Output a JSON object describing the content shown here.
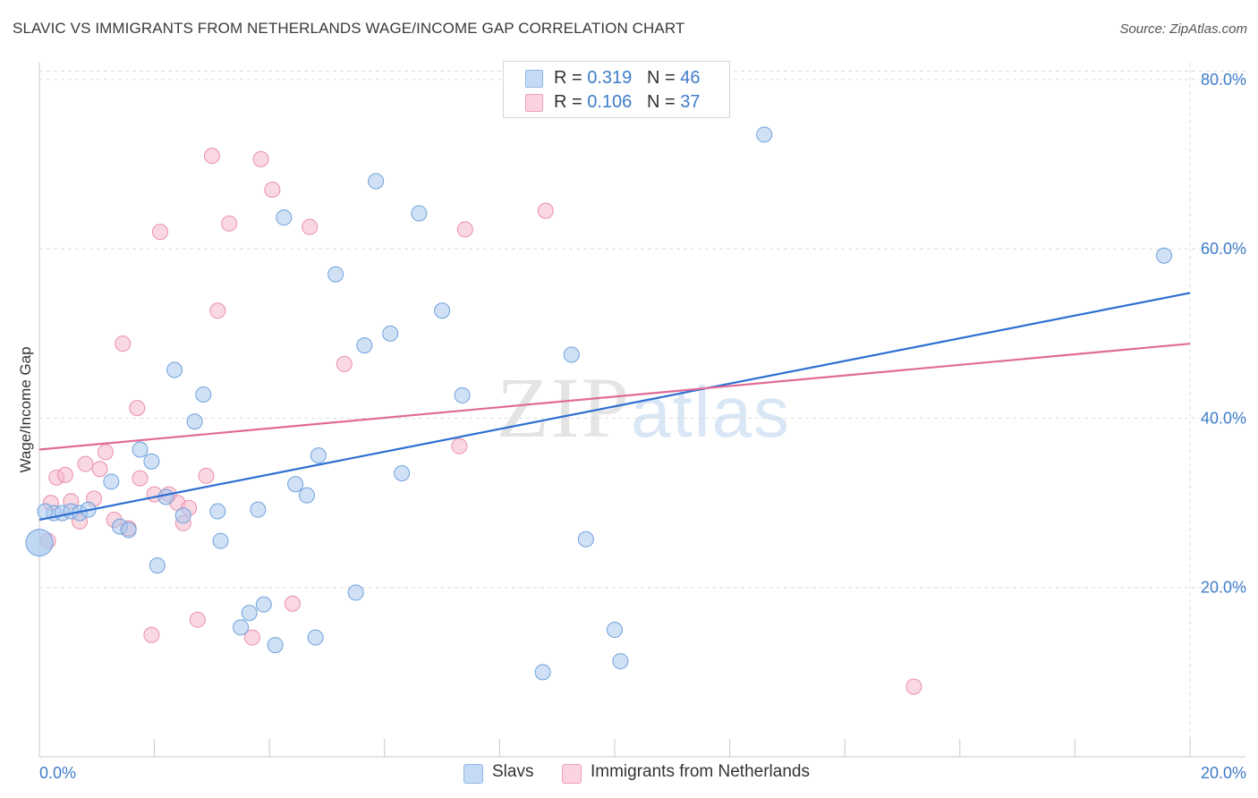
{
  "header": {
    "title": "SLAVIC VS IMMIGRANTS FROM NETHERLANDS WAGE/INCOME GAP CORRELATION CHART",
    "source": "Source: ZipAtlas.com"
  },
  "watermark": {
    "zip": "ZIP",
    "atlas": "atlas"
  },
  "legend": {
    "r_label": "R =",
    "n_label": "N =",
    "rows": [
      {
        "r": "0.319",
        "n": "46",
        "color": "#a9c9ef"
      },
      {
        "r": "0.106",
        "n": "37",
        "color": "#f6b8ca"
      }
    ]
  },
  "bottom_legend": {
    "slavs": "Slavs",
    "netherlands": "Immigrants from Netherlands"
  },
  "colors": {
    "slavs_fill": "#a9c9ef",
    "slavs_stroke": "#6fa1dc",
    "slavs_line": "#2e6fd1",
    "nl_fill": "#f6b8ca",
    "nl_stroke": "#ea8fab",
    "nl_line": "#e06b95",
    "tick_text": "#3d7cc9",
    "grid": "#dcdcdc"
  },
  "chart_data": {
    "type": "scatter",
    "title": "SLAVIC VS IMMIGRANTS FROM NETHERLANDS WAGE/INCOME GAP CORRELATION CHART",
    "xlabel": "",
    "ylabel": "Wage/Income Gap",
    "xlim": [
      0,
      20
    ],
    "ylim": [
      0,
      82
    ],
    "x_tick_labels": [
      "0.0%",
      "20.0%"
    ],
    "y_ticks": [
      20,
      40,
      60,
      80
    ],
    "y_tick_labels": [
      "20.0%",
      "40.0%",
      "60.0%",
      "80.0%"
    ],
    "grid": true,
    "legend_position": "top-center",
    "series": [
      {
        "name": "Slavs",
        "r": 0.319,
        "n": 46,
        "trend": {
          "x0": 0,
          "y0": 28.0,
          "x1": 20,
          "y1": 54.8
        },
        "points": [
          [
            0.0,
            25.3
          ],
          [
            0.25,
            28.8
          ],
          [
            0.4,
            28.8
          ],
          [
            0.55,
            29.0
          ],
          [
            0.7,
            28.8
          ],
          [
            0.85,
            29.2
          ],
          [
            1.25,
            32.5
          ],
          [
            1.4,
            27.2
          ],
          [
            1.55,
            26.8
          ],
          [
            1.75,
            36.3
          ],
          [
            1.95,
            34.9
          ],
          [
            2.05,
            22.6
          ],
          [
            2.2,
            30.7
          ],
          [
            2.35,
            45.7
          ],
          [
            2.5,
            28.5
          ],
          [
            2.7,
            39.6
          ],
          [
            2.85,
            42.8
          ],
          [
            3.1,
            29.0
          ],
          [
            3.15,
            25.5
          ],
          [
            3.5,
            15.3
          ],
          [
            3.65,
            17.0
          ],
          [
            3.8,
            29.2
          ],
          [
            3.9,
            18.0
          ],
          [
            4.1,
            13.2
          ],
          [
            4.25,
            63.7
          ],
          [
            4.45,
            32.2
          ],
          [
            4.65,
            30.9
          ],
          [
            4.85,
            35.6
          ],
          [
            4.8,
            14.1
          ],
          [
            5.15,
            57.0
          ],
          [
            5.5,
            19.4
          ],
          [
            5.65,
            48.6
          ],
          [
            5.85,
            68.0
          ],
          [
            6.1,
            50.0
          ],
          [
            6.3,
            33.5
          ],
          [
            6.6,
            64.2
          ],
          [
            7.0,
            52.7
          ],
          [
            7.35,
            42.7
          ],
          [
            8.75,
            10.0
          ],
          [
            9.25,
            47.5
          ],
          [
            9.5,
            25.7
          ],
          [
            10.0,
            15.0
          ],
          [
            10.1,
            11.3
          ],
          [
            12.6,
            73.5
          ],
          [
            19.55,
            59.2
          ],
          [
            0.1,
            29.0
          ]
        ]
      },
      {
        "name": "Immigrants from Netherlands",
        "r": 0.106,
        "n": 37,
        "trend": {
          "x0": 0,
          "y0": 36.3,
          "x1": 20,
          "y1": 48.8
        },
        "points": [
          [
            0.2,
            30.0
          ],
          [
            0.3,
            33.0
          ],
          [
            0.45,
            33.3
          ],
          [
            0.55,
            30.2
          ],
          [
            0.7,
            27.8
          ],
          [
            0.8,
            34.6
          ],
          [
            0.95,
            30.5
          ],
          [
            1.05,
            34.0
          ],
          [
            1.15,
            36.0
          ],
          [
            1.3,
            28.0
          ],
          [
            1.45,
            48.8
          ],
          [
            1.55,
            27.0
          ],
          [
            1.7,
            41.2
          ],
          [
            1.75,
            32.9
          ],
          [
            1.95,
            14.4
          ],
          [
            2.0,
            31.0
          ],
          [
            2.1,
            62.0
          ],
          [
            2.25,
            31.0
          ],
          [
            2.4,
            30.0
          ],
          [
            2.5,
            27.6
          ],
          [
            2.6,
            29.4
          ],
          [
            2.75,
            16.2
          ],
          [
            2.9,
            33.2
          ],
          [
            3.0,
            71.0
          ],
          [
            3.1,
            52.7
          ],
          [
            3.3,
            63.0
          ],
          [
            3.7,
            14.1
          ],
          [
            3.85,
            70.6
          ],
          [
            4.05,
            67.0
          ],
          [
            4.4,
            18.1
          ],
          [
            4.7,
            62.6
          ],
          [
            5.3,
            46.4
          ],
          [
            7.3,
            36.7
          ],
          [
            7.4,
            62.3
          ],
          [
            8.8,
            64.5
          ],
          [
            15.2,
            8.3
          ],
          [
            0.15,
            25.5
          ]
        ]
      }
    ]
  }
}
